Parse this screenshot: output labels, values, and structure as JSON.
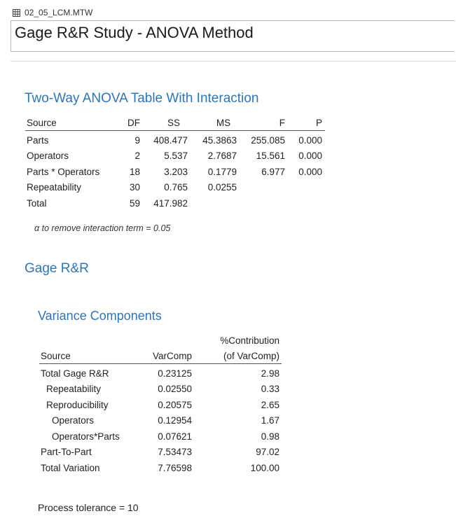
{
  "window": {
    "tab_title": "02_05_LCM.MTW",
    "grid_icon": "worksheet-grid-icon"
  },
  "page": {
    "title": "Gage R&R Study - ANOVA Method"
  },
  "anova": {
    "heading": "Two-Way ANOVA Table With Interaction",
    "columns": [
      "Source",
      "DF",
      "SS",
      "MS",
      "F",
      "P"
    ],
    "rows": [
      [
        "Parts",
        "9",
        "408.477",
        "45.3863",
        "255.085",
        "0.000"
      ],
      [
        "Operators",
        "2",
        "5.537",
        "2.7687",
        "15.561",
        "0.000"
      ],
      [
        "Parts * Operators",
        "18",
        "3.203",
        "0.1779",
        "6.977",
        "0.000"
      ],
      [
        "Repeatability",
        "30",
        "0.765",
        "0.0255",
        "",
        ""
      ],
      [
        "Total",
        "59",
        "417.982",
        "",
        "",
        ""
      ]
    ],
    "note": "α to remove interaction term = 0.05"
  },
  "gage": {
    "heading": "Gage R&R",
    "variance": {
      "heading": "Variance Components",
      "col_source": "Source",
      "col_varcomp": "VarComp",
      "col_contrib_line1": "%Contribution",
      "col_contrib_line2": "(of VarComp)",
      "rows": [
        [
          "Total Gage R&R",
          "0.23125",
          "2.98"
        ],
        [
          "Repeatability",
          "0.02550",
          "0.33"
        ],
        [
          "Reproducibility",
          "0.20575",
          "2.65"
        ],
        [
          "Operators",
          "0.12954",
          "1.67"
        ],
        [
          "Operators*Parts",
          "0.07621",
          "0.98"
        ],
        [
          "Part-To-Part",
          "7.53473",
          "97.02"
        ],
        [
          "Total Variation",
          "7.76598",
          "100.00"
        ]
      ]
    },
    "tolerance": "Process tolerance = 10"
  }
}
